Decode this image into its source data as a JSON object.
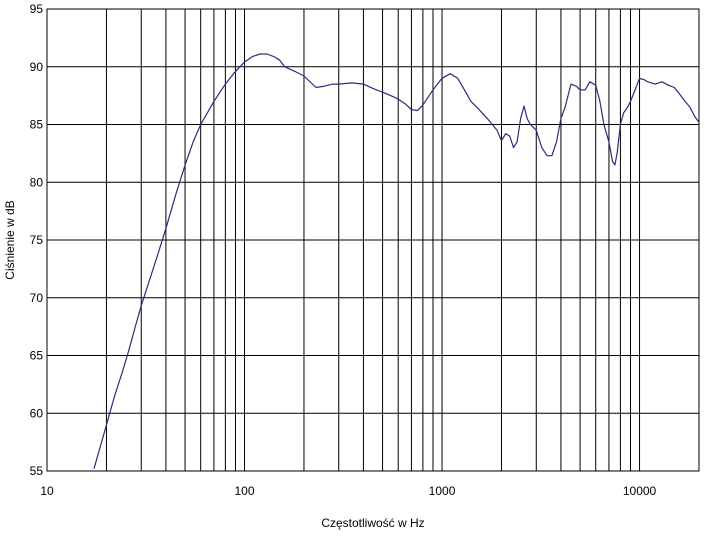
{
  "chart_data": {
    "type": "line",
    "title": "",
    "xlabel": "Częstotliwość w Hz",
    "ylabel": "Ciśnienie w dB",
    "xscale": "log",
    "xlim": [
      10,
      20000
    ],
    "ylim": [
      55,
      95
    ],
    "grid": true,
    "legend": "none",
    "x_ticks": [
      {
        "value": 10,
        "label": "10"
      },
      {
        "value": 100,
        "label": "100"
      },
      {
        "value": 1000,
        "label": "1000"
      },
      {
        "value": 10000,
        "label": "10000"
      }
    ],
    "y_ticks": [
      {
        "value": 55,
        "label": "55"
      },
      {
        "value": 60,
        "label": "60"
      },
      {
        "value": 65,
        "label": "65"
      },
      {
        "value": 70,
        "label": "70"
      },
      {
        "value": 75,
        "label": "75"
      },
      {
        "value": 80,
        "label": "80"
      },
      {
        "value": 85,
        "label": "85"
      },
      {
        "value": 90,
        "label": "90"
      },
      {
        "value": 95,
        "label": "95"
      }
    ],
    "series": [
      {
        "color": "#2c2c7a",
        "x": [
          17.3,
          20,
          22,
          24,
          26,
          28,
          30,
          33,
          36,
          40,
          45,
          50,
          55,
          60,
          70,
          80,
          90,
          100,
          110,
          120,
          130,
          140,
          150,
          160,
          180,
          200,
          230,
          250,
          280,
          300,
          350,
          400,
          450,
          500,
          550,
          600,
          650,
          700,
          750,
          800,
          900,
          1000,
          1100,
          1200,
          1300,
          1400,
          1500,
          1700,
          1900,
          2000,
          2100,
          2200,
          2300,
          2400,
          2500,
          2600,
          2700,
          2800,
          3000,
          3200,
          3400,
          3600,
          3800,
          4000,
          4200,
          4500,
          4800,
          5000,
          5300,
          5600,
          6000,
          6300,
          6600,
          7000,
          7300,
          7500,
          7700,
          8000,
          8300,
          8700,
          9000,
          9500,
          10000,
          10500,
          11000,
          12000,
          13000,
          14000,
          15000,
          16000,
          17000,
          18000,
          19000,
          20000
        ],
        "values": [
          55.2,
          59.0,
          61.5,
          63.5,
          65.5,
          67.5,
          69.3,
          71.5,
          73.5,
          76.0,
          79.0,
          81.5,
          83.5,
          85.0,
          87.0,
          88.5,
          89.6,
          90.4,
          90.9,
          91.1,
          91.1,
          90.9,
          90.6,
          90.0,
          89.6,
          89.2,
          88.2,
          88.3,
          88.5,
          88.5,
          88.6,
          88.5,
          88.1,
          87.8,
          87.5,
          87.2,
          86.8,
          86.3,
          86.2,
          86.7,
          88.0,
          89.0,
          89.4,
          89.0,
          88.0,
          87.0,
          86.5,
          85.5,
          84.5,
          83.6,
          84.2,
          84.0,
          83.0,
          83.5,
          85.5,
          86.6,
          85.5,
          85.0,
          84.5,
          83.0,
          82.3,
          82.3,
          83.5,
          85.5,
          86.5,
          88.5,
          88.3,
          88.0,
          88.0,
          88.7,
          88.4,
          87.0,
          85.0,
          83.5,
          81.8,
          81.5,
          82.5,
          85.0,
          86.0,
          86.5,
          87.0,
          88.0,
          89.0,
          88.9,
          88.7,
          88.5,
          88.7,
          88.4,
          88.2,
          87.6,
          87.0,
          86.5,
          85.7,
          85.2
        ]
      }
    ]
  }
}
